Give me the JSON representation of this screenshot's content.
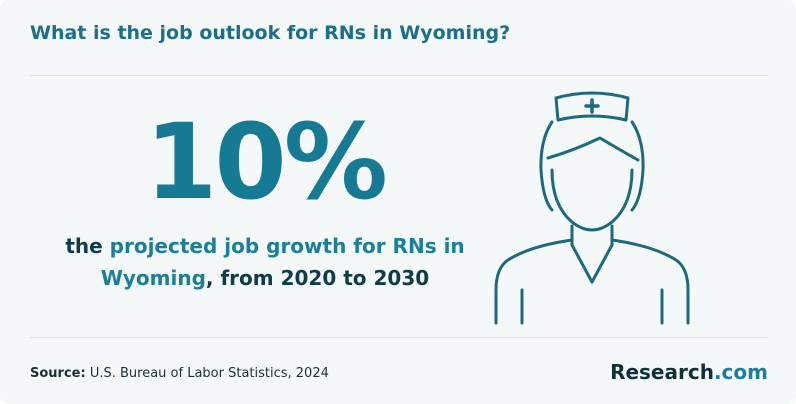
{
  "header": {
    "title": "What is the job outlook for RNs in Wyoming?"
  },
  "stat": {
    "value": "10%",
    "description": [
      [
        "the ",
        "projected job growth for RNs in"
      ],
      [
        "Wyoming",
        ", from 2020 to 2030"
      ]
    ]
  },
  "footer": {
    "source_label": "Source:",
    "source_text": "U.S. Bureau of Labor Statistics, 2024",
    "logo": [
      "Research",
      ".com"
    ]
  }
}
